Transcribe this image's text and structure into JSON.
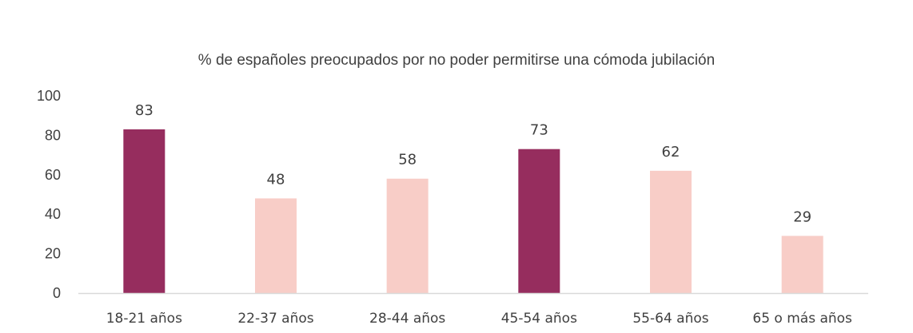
{
  "chart_data": {
    "type": "bar",
    "title": "% de españoles preocupados por no poder permitirse una cómoda jubilación",
    "xlabel": "",
    "ylabel": "",
    "categories": [
      "18-21 años",
      "22-37 años",
      "28-44 años",
      "45-54 años",
      "55-64 años",
      "65 o más años"
    ],
    "values": [
      83,
      48,
      58,
      73,
      62,
      29
    ],
    "data_labels": [
      "83",
      "48",
      "58",
      "73",
      "62",
      "29"
    ],
    "highlighted": [
      true,
      false,
      false,
      true,
      false,
      false
    ],
    "ylim": [
      0,
      100
    ],
    "yticks": [
      0,
      20,
      40,
      60,
      80,
      100
    ],
    "ytick_labels": [
      "0",
      "20",
      "40",
      "60",
      "80",
      "100"
    ],
    "grid": false,
    "legend": "none",
    "colors": {
      "highlight": "#962D5E",
      "normal": "#F8CDC7",
      "axis": "#D9D9D9",
      "text": "#404040"
    }
  }
}
